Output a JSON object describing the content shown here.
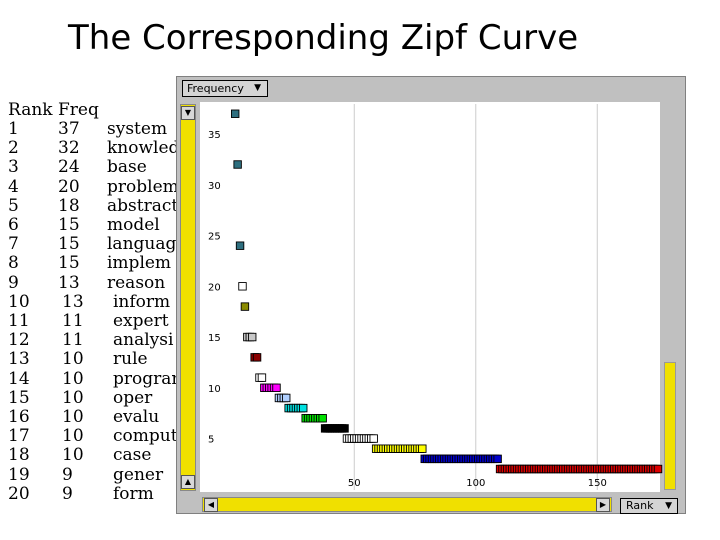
{
  "title": "The Corresponding Zipf Curve",
  "table": {
    "headers": [
      "Rank",
      "Freq"
    ],
    "rows": [
      {
        "rank": "1",
        "freq": "37",
        "term": "system"
      },
      {
        "rank": "2",
        "freq": "32",
        "term": "knowledg"
      },
      {
        "rank": "3",
        "freq": "24",
        "term": "base"
      },
      {
        "rank": "4",
        "freq": "20",
        "term": "problem"
      },
      {
        "rank": "5",
        "freq": "18",
        "term": "abstract"
      },
      {
        "rank": "6",
        "freq": "15",
        "term": "model"
      },
      {
        "rank": "7",
        "freq": "15",
        "term": "languag"
      },
      {
        "rank": "8",
        "freq": "15",
        "term": "implem"
      },
      {
        "rank": "9",
        "freq": "13",
        "term": "reason"
      },
      {
        "rank": "10",
        "freq": "13",
        "term": "inform"
      },
      {
        "rank": "11",
        "freq": "11",
        "term": "expert"
      },
      {
        "rank": "12",
        "freq": "11",
        "term": "analysi"
      },
      {
        "rank": "13",
        "freq": "10",
        "term": "rule"
      },
      {
        "rank": "14",
        "freq": "10",
        "term": "program"
      },
      {
        "rank": "15",
        "freq": "10",
        "term": "oper"
      },
      {
        "rank": "16",
        "freq": "10",
        "term": "evalu"
      },
      {
        "rank": "17",
        "freq": "10",
        "term": "comput"
      },
      {
        "rank": "18",
        "freq": "10",
        "term": "case"
      },
      {
        "rank": "19",
        "freq": "9",
        "term": "gener"
      },
      {
        "rank": "20",
        "freq": "9",
        "term": "form"
      }
    ]
  },
  "controls": {
    "y_selector": "Frequency",
    "x_selector": "Rank"
  },
  "chart_data": {
    "type": "scatter",
    "title": "",
    "xlabel": "Rank",
    "ylabel": "Frequency",
    "xlim": [
      0,
      180
    ],
    "ylim": [
      0,
      37
    ],
    "x_ticks": [
      50,
      100,
      150
    ],
    "y_ticks": [
      5,
      10,
      15,
      20,
      25,
      30,
      35
    ],
    "grid": true,
    "groups": [
      {
        "x_start": 1,
        "x_end": 1,
        "y": 37,
        "color": "#2e6f7f"
      },
      {
        "x_start": 2,
        "x_end": 2,
        "y": 32,
        "color": "#2e6f7f"
      },
      {
        "x_start": 3,
        "x_end": 3,
        "y": 24,
        "color": "#2e6f7f"
      },
      {
        "x_start": 4,
        "x_end": 4,
        "y": 20,
        "color": "#ffffff"
      },
      {
        "x_start": 5,
        "x_end": 5,
        "y": 18,
        "color": "#8b8b00"
      },
      {
        "x_start": 6,
        "x_end": 8,
        "y": 15,
        "color": "#c8c8c8"
      },
      {
        "x_start": 9,
        "x_end": 10,
        "y": 13,
        "color": "#8b0000"
      },
      {
        "x_start": 11,
        "x_end": 12,
        "y": 11,
        "color": "#ffffff"
      },
      {
        "x_start": 13,
        "x_end": 18,
        "y": 10,
        "color": "#ff00ff"
      },
      {
        "x_start": 19,
        "x_end": 22,
        "y": 9,
        "color": "#b0d0ff"
      },
      {
        "x_start": 23,
        "x_end": 29,
        "y": 8,
        "color": "#00e0e0"
      },
      {
        "x_start": 30,
        "x_end": 37,
        "y": 7,
        "color": "#00e000"
      },
      {
        "x_start": 38,
        "x_end": 46,
        "y": 6,
        "color": "#000000"
      },
      {
        "x_start": 47,
        "x_end": 58,
        "y": 5,
        "color": "#ffffff"
      },
      {
        "x_start": 59,
        "x_end": 78,
        "y": 4,
        "color": "#ffff00"
      },
      {
        "x_start": 79,
        "x_end": 109,
        "y": 3,
        "color": "#0000cc"
      },
      {
        "x_start": 110,
        "x_end": 175,
        "y": 2,
        "color": "#dd0000"
      }
    ]
  }
}
